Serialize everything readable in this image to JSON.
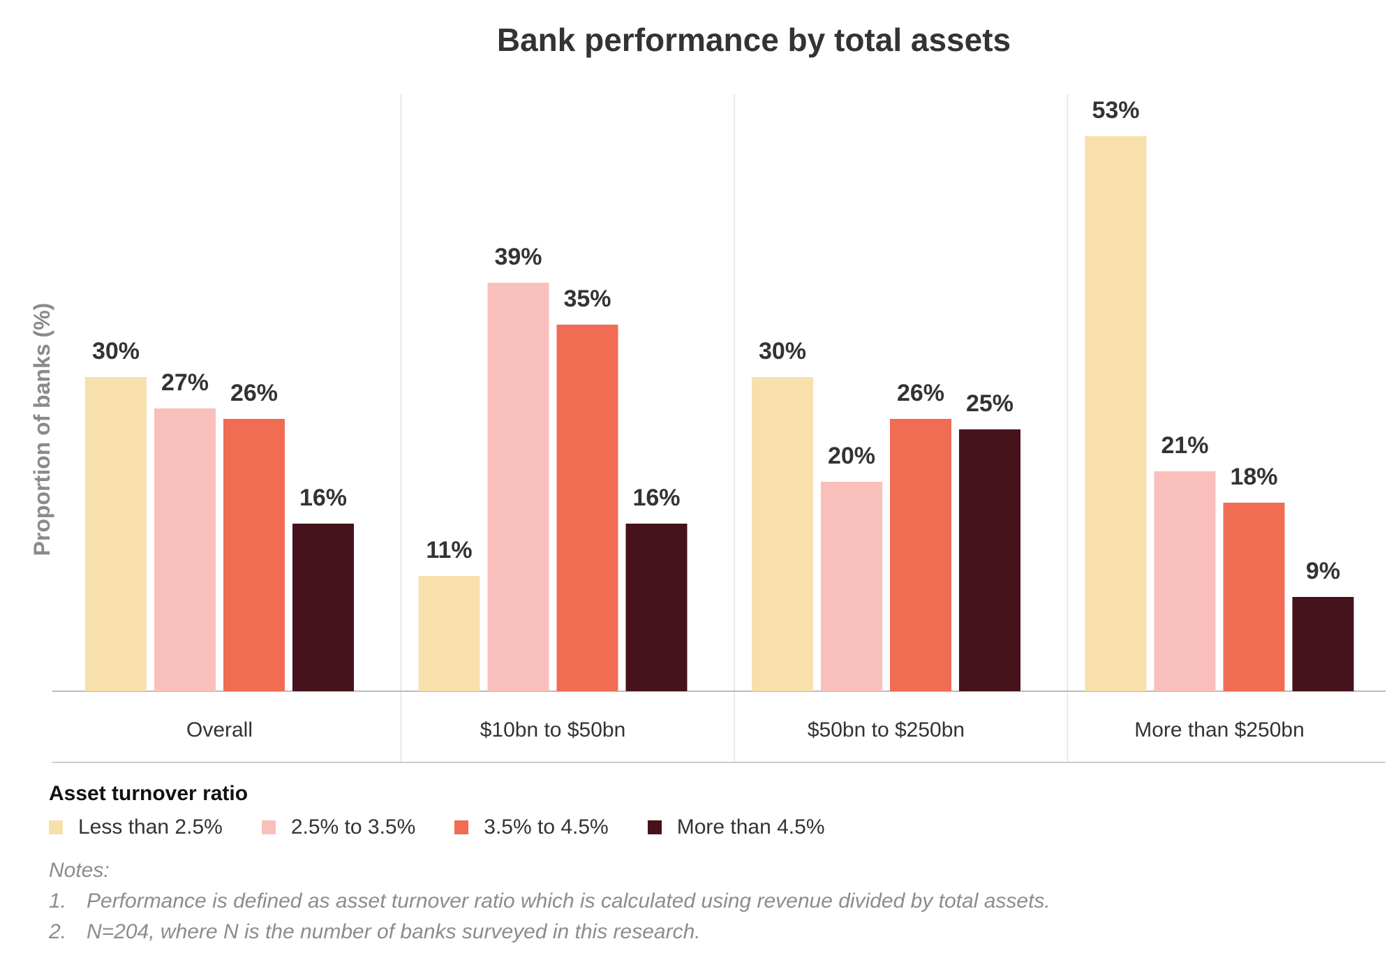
{
  "chart_data": {
    "type": "bar",
    "title": "Bank performance by total assets",
    "ylabel": "Proportion of banks (%)",
    "xlabel": "",
    "ylim": [
      0,
      60
    ],
    "grid": false,
    "categories": [
      "Overall",
      "$10bn to $50bn",
      "$50bn to $250bn",
      "More than $250bn"
    ],
    "series": [
      {
        "name": "Less than 2.5%",
        "color": "#f8e0ac",
        "values": [
          30,
          11,
          30,
          53
        ],
        "labels": [
          "30%",
          "11%",
          "30%",
          "53%"
        ]
      },
      {
        "name": "2.5% to 3.5%",
        "color": "#f9c0bb",
        "values": [
          27,
          39,
          20,
          21
        ],
        "labels": [
          "27%",
          "39%",
          "20%",
          "21%"
        ]
      },
      {
        "name": "3.5% to 4.5%",
        "color": "#f06c53",
        "values": [
          26,
          35,
          26,
          18
        ],
        "labels": [
          "26%",
          "35%",
          "26%",
          "18%"
        ]
      },
      {
        "name": "More than 4.5%",
        "color": "#46121b",
        "values": [
          16,
          16,
          25,
          9
        ],
        "labels": [
          "16%",
          "16%",
          "25%",
          "9%"
        ]
      }
    ]
  },
  "legend": {
    "title": "Asset turnover ratio",
    "placement": "bottom-left"
  },
  "notes": {
    "heading": "Notes:",
    "items": [
      {
        "num": "1.",
        "text": "Performance is defined as asset turnover ratio which is calculated using revenue divided by total assets."
      },
      {
        "num": "2.",
        "text": "N=204, where N is the number of banks surveyed in this research."
      }
    ]
  }
}
